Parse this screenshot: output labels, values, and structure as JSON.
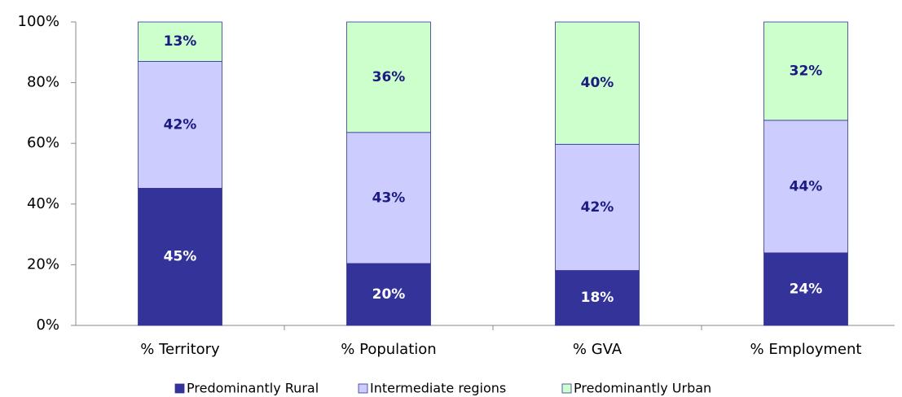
{
  "chart_data": {
    "type": "stacked_bar",
    "categories": [
      "% Territory",
      "% Population",
      "% GVA",
      "% Employment"
    ],
    "series": [
      {
        "name": "Predominantly Rural",
        "color": "#333399",
        "values": [
          45.2,
          20.4,
          18.1,
          23.9
        ],
        "value_labels": [
          "45%",
          "20%",
          "18%",
          "24%"
        ]
      },
      {
        "name": "Intermediate regions",
        "color": "#ccccff",
        "values": [
          41.8,
          43.2,
          41.6,
          43.7
        ],
        "value_labels": [
          "42%",
          "43%",
          "42%",
          "44%"
        ]
      },
      {
        "name": "Predominantly Urban",
        "color": "#ccffcc",
        "values": [
          13,
          36.4,
          40.3,
          32.4
        ],
        "value_labels": [
          "13%",
          "36%",
          "40%",
          "32%"
        ]
      }
    ],
    "ylim": [
      0,
      100
    ],
    "yticks": [
      {
        "value": 0,
        "label": "0%"
      },
      {
        "value": 20,
        "label": "20%"
      },
      {
        "value": 40,
        "label": "40%"
      },
      {
        "value": 60,
        "label": "60%"
      },
      {
        "value": 80,
        "label": "80%"
      },
      {
        "value": 100,
        "label": "100%"
      }
    ],
    "grid": false,
    "legend": "bottom"
  }
}
